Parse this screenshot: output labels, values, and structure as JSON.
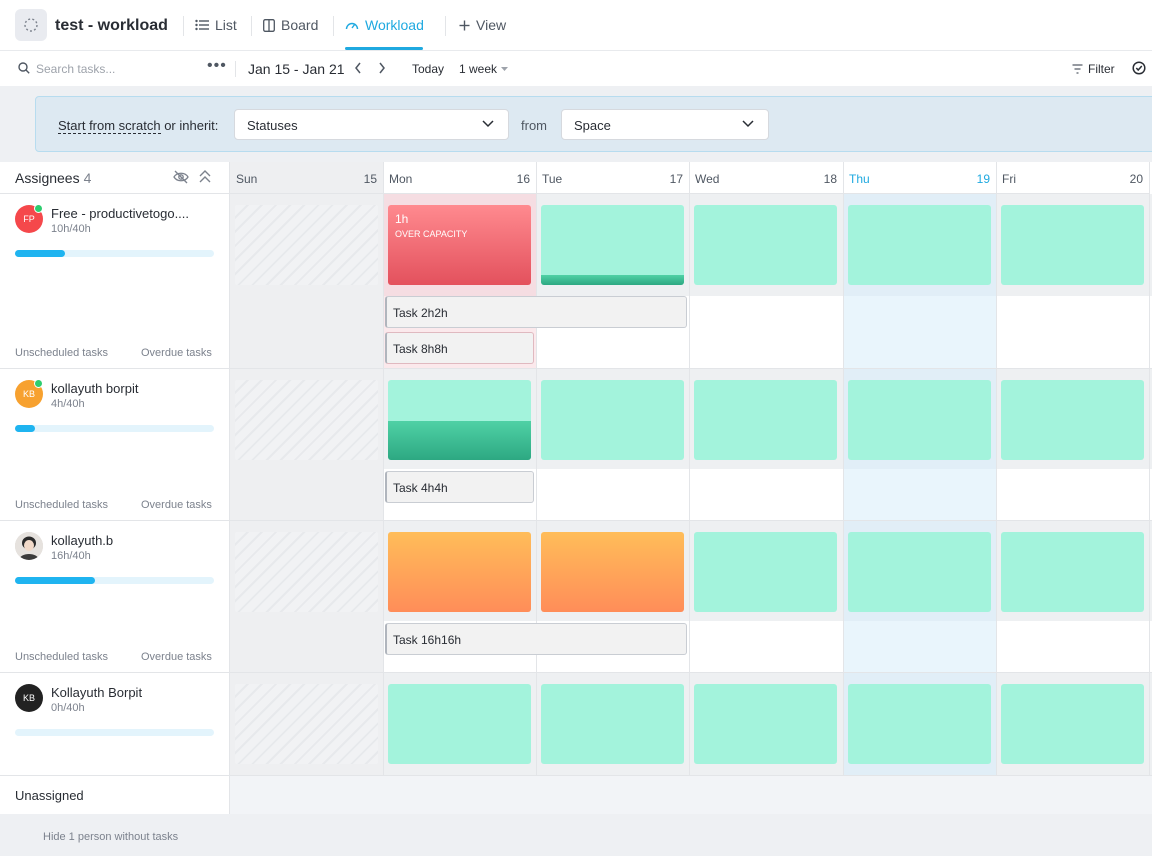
{
  "header": {
    "project_title": "test - workload",
    "tabs": [
      {
        "label": "List",
        "icon": "list-icon"
      },
      {
        "label": "Board",
        "icon": "board-icon"
      },
      {
        "label": "Workload",
        "icon": "gauge-icon",
        "active": true
      },
      {
        "label": "View",
        "icon": "plus-icon"
      }
    ]
  },
  "toolbar": {
    "search_placeholder": "Search tasks...",
    "date_range": "Jan 15 - Jan 21",
    "today_label": "Today",
    "week_label": "1 week",
    "filter_label": "Filter"
  },
  "banner": {
    "scratch_label": "Start from scratch",
    "inherit_label": " or inherit:",
    "statuses_value": "Statuses",
    "from_label": "from",
    "space_value": "Space"
  },
  "grid": {
    "assignees_label": "Assignees",
    "assignees_count": "4",
    "days": [
      {
        "name": "Sun",
        "num": "15"
      },
      {
        "name": "Mon",
        "num": "16"
      },
      {
        "name": "Tue",
        "num": "17"
      },
      {
        "name": "Wed",
        "num": "18"
      },
      {
        "name": "Thu",
        "num": "19",
        "today": true
      },
      {
        "name": "Fri",
        "num": "20"
      }
    ],
    "unassigned_label": "Unassigned"
  },
  "people": [
    {
      "initials": "FP",
      "name": "Free - productivetogo....",
      "hours": "10h/40h",
      "progress": 0.25,
      "avatar_color": "#f5484b",
      "online": true,
      "unscheduled": "Unscheduled tasks",
      "overdue": "Overdue tasks"
    },
    {
      "initials": "KB",
      "name": "kollayuth borpit",
      "hours": "4h/40h",
      "progress": 0.1,
      "avatar_color": "#f7a12f",
      "online": true,
      "unscheduled": "Unscheduled tasks",
      "overdue": "Overdue tasks"
    },
    {
      "initials": "",
      "name": "kollayuth.b",
      "hours": "16h/40h",
      "progress": 0.4,
      "avatar_color": "#d9d4cf",
      "online": false,
      "unscheduled": "Unscheduled tasks",
      "overdue": "Overdue tasks"
    },
    {
      "initials": "KB",
      "name": "Kollayuth Borpit",
      "hours": "0h/40h",
      "progress": 0,
      "avatar_color": "#222222",
      "online": false
    }
  ],
  "capacity": {
    "over_hours": "1h",
    "over_label": "OVER CAPACITY"
  },
  "tasks": {
    "t1": "Task 2h2h",
    "t2": "Task 8h8h",
    "t3": "Task 4h4h",
    "t4": "Task 16h16h"
  },
  "footer": {
    "hide_label": "Hide 1 person without tasks"
  }
}
